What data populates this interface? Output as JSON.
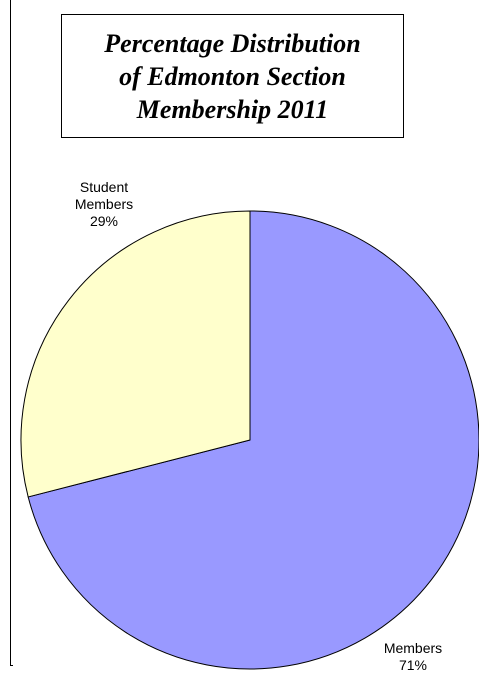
{
  "chart_data": {
    "type": "pie",
    "title_lines": [
      "Percentage Distribution",
      "of Edmonton Section",
      "Membership 2011"
    ],
    "slices": [
      {
        "label_lines": [
          "Members",
          "71%"
        ],
        "value": 71,
        "color": "#9999ff"
      },
      {
        "label_lines": [
          "Student",
          "Members",
          "29%"
        ],
        "value": 29,
        "color": "#ffffcc"
      }
    ],
    "start_angle_deg": 0,
    "direction": "clockwise",
    "legend": "none"
  }
}
